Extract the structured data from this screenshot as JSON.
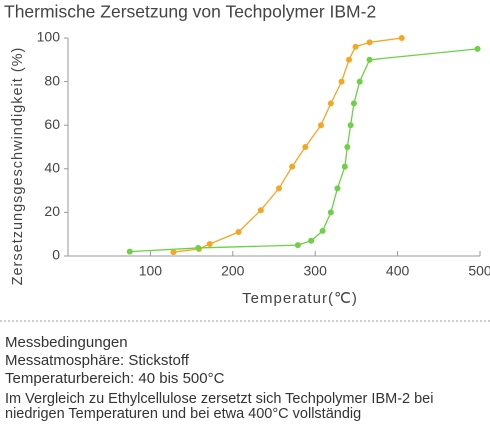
{
  "chart_data": {
    "type": "line",
    "title": "Thermische Zersetzung von Techpolymer IBM-2",
    "x_label": "Temperatur(℃)",
    "y_label": "Zersetzungsgeschwindigkeit (%)",
    "xlim": [
      0,
      500
    ],
    "xticks": [
      100,
      200,
      300,
      400,
      500
    ],
    "ylim": [
      0,
      100
    ],
    "yticks": [
      0,
      20,
      40,
      60,
      80,
      100
    ],
    "grid": false,
    "series": [
      {
        "color": "#f5a623",
        "x": [
          128,
          159,
          172,
          207,
          234,
          256,
          272,
          288,
          307,
          319,
          332,
          341,
          349,
          366,
          405
        ],
        "values": [
          1.8,
          3.2,
          5.5,
          11,
          21,
          31,
          41,
          50,
          60,
          70,
          80,
          90,
          96,
          98,
          100
        ]
      },
      {
        "color": "#6cd146",
        "x": [
          75,
          158,
          279,
          295,
          309,
          319,
          327,
          336,
          339,
          343,
          347,
          354,
          366,
          497
        ],
        "values": [
          2,
          3.7,
          5,
          7,
          11.5,
          20,
          31,
          41,
          50,
          60,
          70,
          80,
          90,
          95
        ]
      }
    ]
  },
  "notes": {
    "heading": "Messbedingungen",
    "lines": [
      "Messatmosphäre: Stickstoff",
      "Temperaturbereich: 40 bis 500°C"
    ],
    "paragraph": "Im Vergleich zu Ethylcellulose zersetzt sich Techpolymer IBM-2 bei niedrigen Temperaturen und bei etwa 400°C vollständig"
  }
}
